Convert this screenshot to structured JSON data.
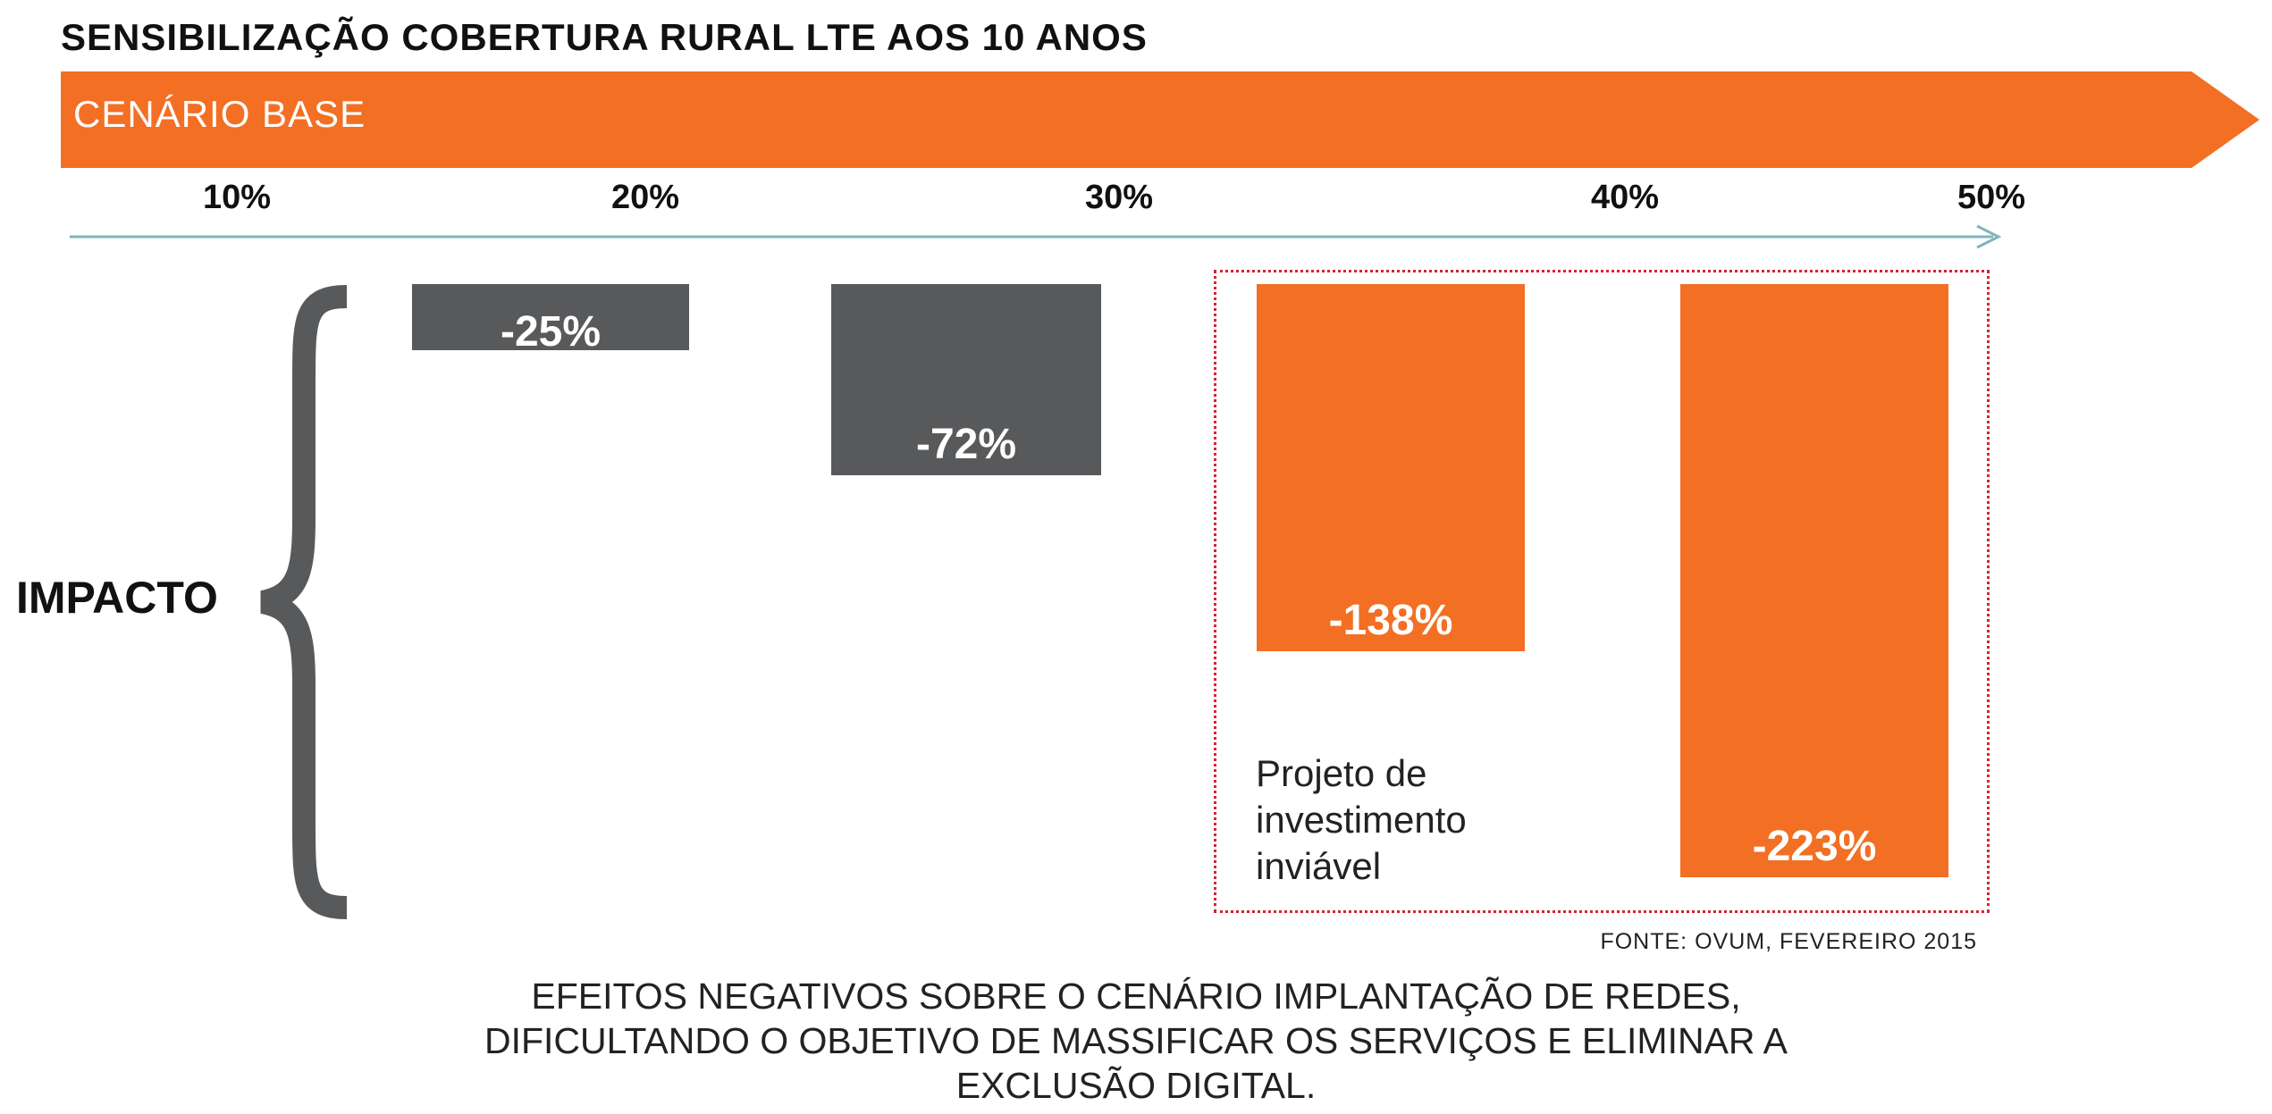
{
  "title": "SENSIBILIZAÇÃO COBERTURA RURAL LTE AOS 10 ANOS",
  "banner": {
    "label": "CENÁRIO BASE",
    "color": "#f26f23"
  },
  "colors": {
    "gray_bar": "#58595b",
    "orange_bar": "#f26f23",
    "axis": "#7fb5bd",
    "brace": "#58595b",
    "highlight_border": "#d9232d"
  },
  "impact_label": "IMPACTO",
  "chart_data": {
    "type": "bar",
    "categories": [
      "10%",
      "20%",
      "30%",
      "40%",
      "50%"
    ],
    "values": [
      null,
      -25,
      -72,
      -138,
      -223
    ],
    "value_labels": [
      "",
      "-25%",
      "-72%",
      "-138%",
      "-223%"
    ],
    "bar_colors": [
      "",
      "#58595b",
      "#58595b",
      "#f26f23",
      "#f26f23"
    ],
    "ylim": [
      -223,
      0
    ],
    "title": "SENSIBILIZAÇÃO COBERTURA RURAL LTE AOS 10 ANOS",
    "ylabel": "IMPACTO"
  },
  "annotation": {
    "lines": [
      "Projeto de",
      "investimento",
      "inviável"
    ]
  },
  "source": "FONTE: OVUM, FEVEREIRO 2015",
  "footer": {
    "lines": [
      "EFEITOS NEGATIVOS SOBRE O CENÁRIO IMPLANTAÇÃO DE REDES,",
      "DIFICULTANDO O OBJETIVO DE MASSIFICAR OS SERVIÇOS E ELIMINAR A",
      "EXCLUSÃO DIGITAL."
    ]
  }
}
